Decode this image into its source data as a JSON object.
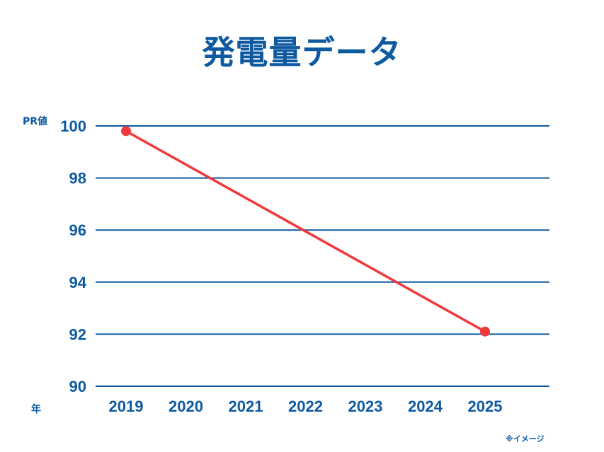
{
  "title": "発電量データ",
  "footnote": "※イメージ",
  "chart_data": {
    "type": "line",
    "title": "発電量データ",
    "ylabel": "PR値",
    "xlabel": "年",
    "categories": [
      "2019",
      "2020",
      "2021",
      "2022",
      "2023",
      "2024",
      "2025"
    ],
    "ylim": [
      90,
      100
    ],
    "yticks": [
      90,
      92,
      94,
      96,
      98,
      100
    ],
    "grid": true,
    "series": [
      {
        "points": [
          {
            "x": "2019",
            "y": 99.8
          },
          {
            "x": "2025",
            "y": 92.1
          }
        ],
        "color": "#f0393c"
      }
    ],
    "colors": {
      "axis": "#0e5aa0",
      "grid": "#0e5aa0",
      "text": "#0e5aa0"
    }
  }
}
